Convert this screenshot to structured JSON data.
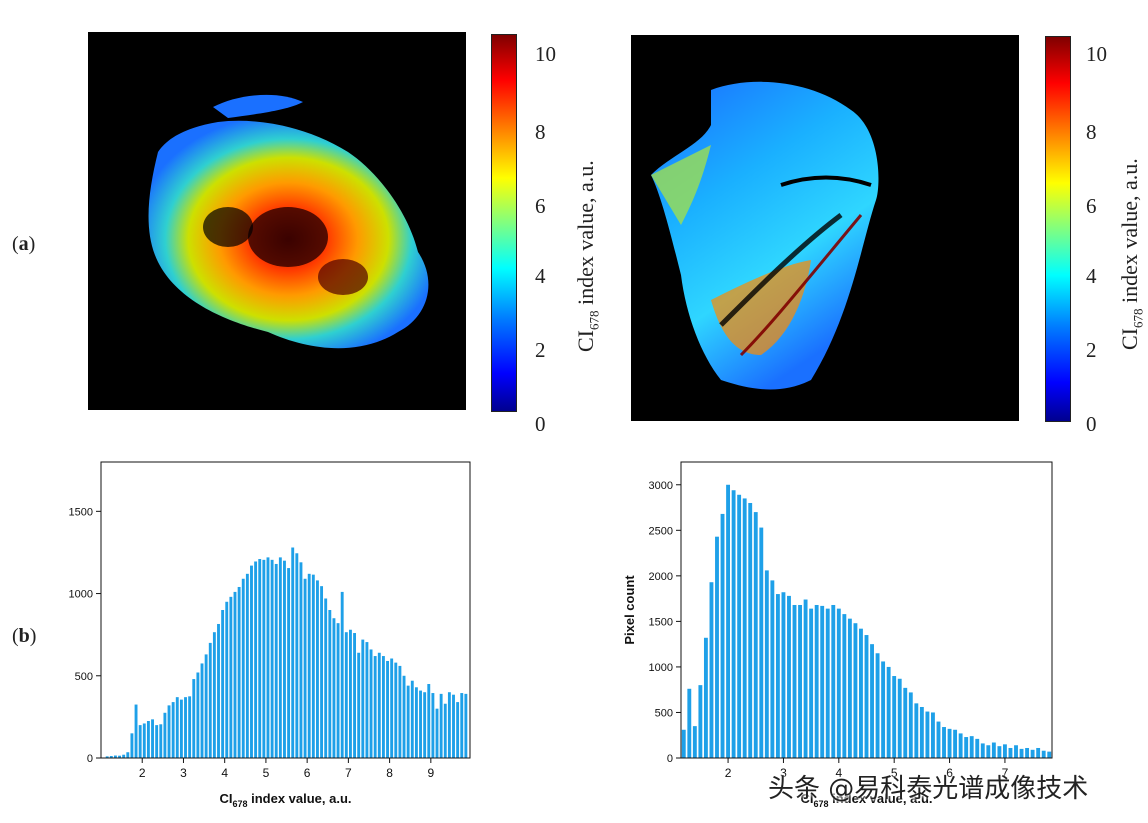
{
  "panel_labels": {
    "a": "(a)",
    "b": "(b)"
  },
  "colorbar": {
    "ticks": [
      "0",
      "2",
      "4",
      "6",
      "8",
      "10"
    ],
    "label_main": "CI",
    "label_sub": "678",
    "label_rest": " index value, a.u."
  },
  "watermark": "头条 @易科泰光谱成像技术",
  "chart_data": [
    {
      "type": "bar",
      "title": "",
      "xlabel_main": "CI",
      "xlabel_sub": "678",
      "xlabel_rest": " index value, a.u.",
      "ylabel": "",
      "xlim": [
        1.0,
        9.95
      ],
      "ylim": [
        0,
        1800
      ],
      "xticks": [
        2,
        3,
        4,
        5,
        6,
        7,
        8,
        9
      ],
      "yticks": [
        0,
        500,
        1000,
        1500
      ],
      "bar_width": 0.07,
      "x": [
        1.15,
        1.25,
        1.35,
        1.45,
        1.55,
        1.65,
        1.75,
        1.85,
        1.95,
        2.05,
        2.15,
        2.25,
        2.35,
        2.45,
        2.55,
        2.65,
        2.75,
        2.85,
        2.95,
        3.05,
        3.15,
        3.25,
        3.35,
        3.45,
        3.55,
        3.65,
        3.75,
        3.85,
        3.95,
        4.05,
        4.15,
        4.25,
        4.35,
        4.45,
        4.55,
        4.65,
        4.75,
        4.85,
        4.95,
        5.05,
        5.15,
        5.25,
        5.35,
        5.45,
        5.55,
        5.65,
        5.75,
        5.85,
        5.95,
        6.05,
        6.15,
        6.25,
        6.35,
        6.45,
        6.55,
        6.65,
        6.75,
        6.85,
        6.95,
        7.05,
        7.15,
        7.25,
        7.35,
        7.45,
        7.55,
        7.65,
        7.75,
        7.85,
        7.95,
        8.05,
        8.15,
        8.25,
        8.35,
        8.45,
        8.55,
        8.65,
        8.75,
        8.85,
        8.95,
        9.05,
        9.15,
        9.25,
        9.35,
        9.45,
        9.55,
        9.65,
        9.75,
        9.85
      ],
      "values": [
        10,
        12,
        15,
        14,
        20,
        35,
        150,
        325,
        200,
        210,
        225,
        235,
        200,
        205,
        275,
        320,
        340,
        370,
        355,
        370,
        375,
        480,
        520,
        575,
        630,
        700,
        765,
        815,
        900,
        950,
        980,
        1010,
        1040,
        1090,
        1120,
        1170,
        1195,
        1210,
        1205,
        1220,
        1205,
        1180,
        1220,
        1200,
        1155,
        1280,
        1245,
        1190,
        1090,
        1120,
        1115,
        1080,
        1045,
        970,
        900,
        850,
        820,
        1010,
        765,
        780,
        760,
        640,
        720,
        705,
        660,
        620,
        640,
        620,
        590,
        605,
        580,
        560,
        500,
        440,
        470,
        430,
        410,
        400,
        450,
        395,
        300,
        390,
        330,
        400,
        385,
        340,
        395,
        390
      ]
    },
    {
      "type": "bar",
      "title": "",
      "xlabel_main": "CI",
      "xlabel_sub": "678",
      "xlabel_rest": " index value, a.u.",
      "ylabel": "Pixel count",
      "xlim": [
        1.15,
        7.85
      ],
      "ylim": [
        0,
        3250
      ],
      "xticks": [
        2,
        3,
        4,
        5,
        6,
        7
      ],
      "yticks": [
        0,
        500,
        1000,
        1500,
        2000,
        2500,
        3000
      ],
      "bar_width": 0.07,
      "x": [
        1.2,
        1.3,
        1.4,
        1.5,
        1.6,
        1.7,
        1.8,
        1.9,
        2.0,
        2.1,
        2.2,
        2.3,
        2.4,
        2.5,
        2.6,
        2.7,
        2.8,
        2.9,
        3.0,
        3.1,
        3.2,
        3.3,
        3.4,
        3.5,
        3.6,
        3.7,
        3.8,
        3.9,
        4.0,
        4.1,
        4.2,
        4.3,
        4.4,
        4.5,
        4.6,
        4.7,
        4.8,
        4.9,
        5.0,
        5.1,
        5.2,
        5.3,
        5.4,
        5.5,
        5.6,
        5.7,
        5.8,
        5.9,
        6.0,
        6.1,
        6.2,
        6.3,
        6.4,
        6.5,
        6.6,
        6.7,
        6.8,
        6.9,
        7.0,
        7.1,
        7.2,
        7.3,
        7.4,
        7.5,
        7.6,
        7.7,
        7.8
      ],
      "values": [
        310,
        760,
        350,
        800,
        1320,
        1930,
        2430,
        2680,
        3000,
        2940,
        2890,
        2850,
        2800,
        2700,
        2530,
        2060,
        1950,
        1800,
        1820,
        1780,
        1680,
        1680,
        1740,
        1640,
        1680,
        1670,
        1640,
        1680,
        1640,
        1580,
        1530,
        1480,
        1420,
        1350,
        1250,
        1150,
        1060,
        1000,
        900,
        870,
        770,
        720,
        600,
        560,
        510,
        500,
        400,
        340,
        320,
        310,
        270,
        230,
        240,
        210,
        160,
        140,
        170,
        130,
        150,
        110,
        140,
        100,
        110,
        90,
        110,
        80,
        70
      ]
    }
  ]
}
